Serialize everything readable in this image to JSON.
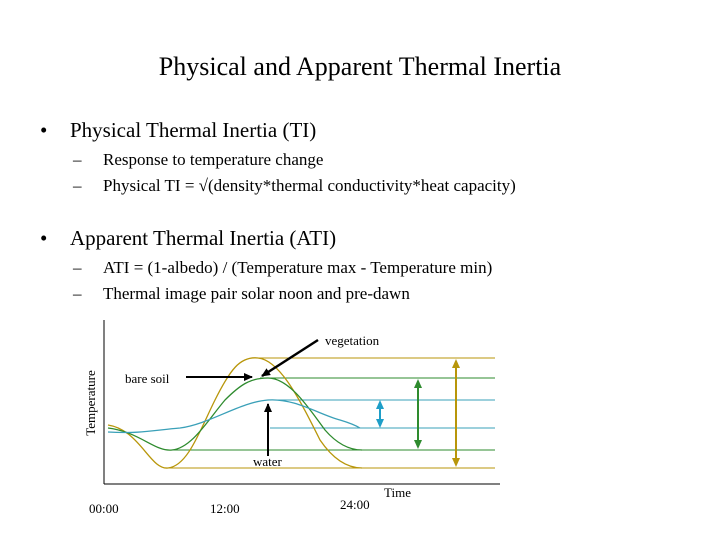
{
  "title": "Physical and Apparent Thermal Inertia",
  "bullet_char": "•",
  "dash_char": "–",
  "sections": [
    {
      "heading": "Physical Thermal Inertia (TI)",
      "items": [
        "Response to temperature change",
        "Physical TI = √(density*thermal conductivity*heat capacity)"
      ]
    },
    {
      "heading": "Apparent Thermal Inertia (ATI)",
      "items": [
        "ATI = (1-albedo) / (Temperature max - Temperature min)",
        "Thermal image pair solar noon and pre-dawn"
      ]
    }
  ],
  "figure": {
    "ylabel": "Temperature",
    "xlabel": "Time",
    "x_ticks": [
      "00:00",
      "12:00",
      "24:00"
    ],
    "labels": {
      "vegetation": "vegetation",
      "bare_soil": "bare soil",
      "water": "water"
    },
    "colors": {
      "axis": "#000000",
      "bare_soil": "#b8960a",
      "vegetation": "#2e8b2e",
      "water": "#1e9ec8",
      "water_curve": "#3aa0b8"
    }
  }
}
